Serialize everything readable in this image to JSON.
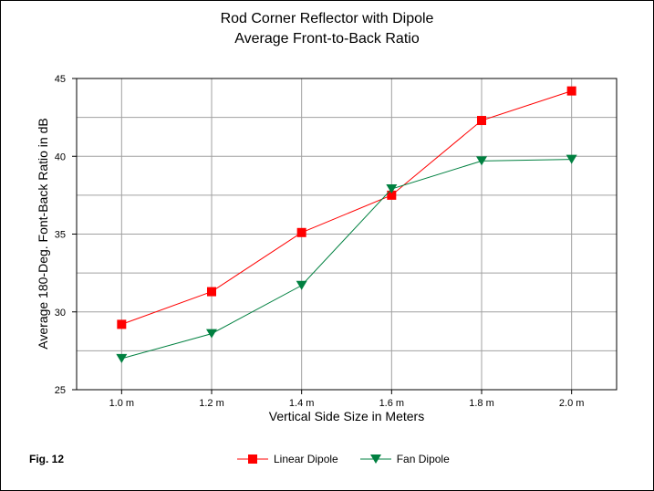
{
  "figure_label": "Fig. 12",
  "chart_data": {
    "type": "line",
    "title": "Rod Corner Reflector with Dipole",
    "subtitle": "Average Front-to-Back Ratio",
    "xlabel": "Vertical Side Size in Meters",
    "ylabel": "Average 180-Deg. Font-Back Ratio in dB",
    "categories": [
      "1.0 m",
      "1.2 m",
      "1.4 m",
      "1.6 m",
      "1.8 m",
      "2.0 m"
    ],
    "ylim": [
      25,
      45
    ],
    "yticks": [
      "25",
      "30",
      "35",
      "40",
      "45"
    ],
    "grid": true,
    "legend_position": "bottom",
    "series": [
      {
        "name": "Linear Dipole",
        "color": "#ff0000",
        "marker": "square",
        "values": [
          29.2,
          31.3,
          35.1,
          37.5,
          42.3,
          44.2
        ]
      },
      {
        "name": "Fan Dipole",
        "color": "#008040",
        "marker": "triangle-down",
        "values": [
          27.0,
          28.6,
          31.7,
          37.9,
          39.7,
          39.8
        ]
      }
    ]
  }
}
